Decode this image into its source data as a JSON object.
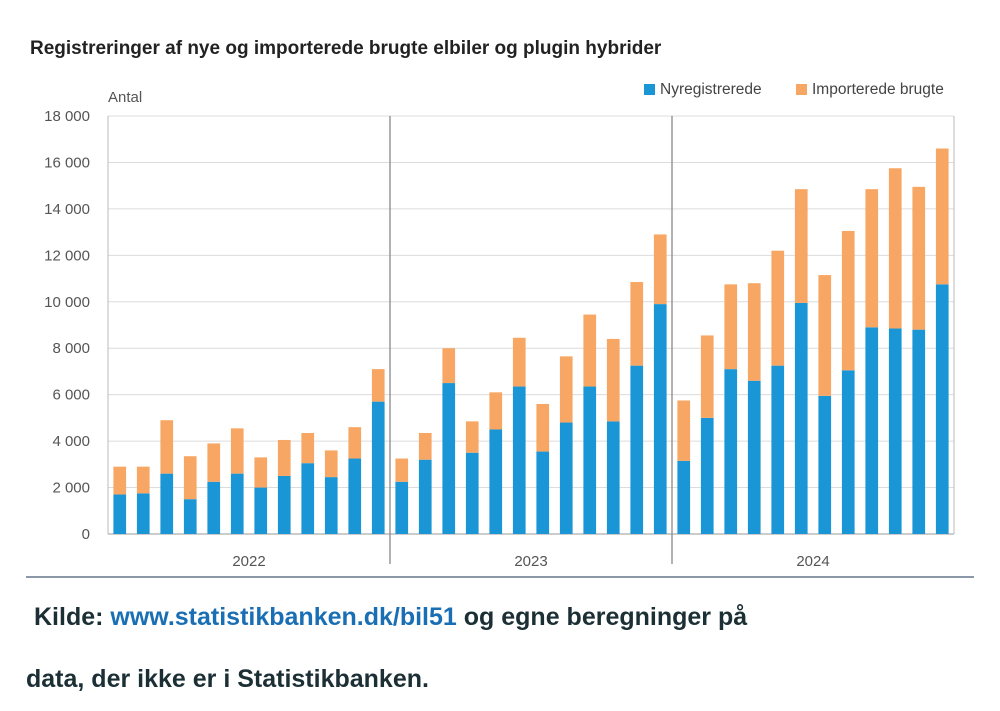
{
  "chart_data": {
    "type": "bar",
    "stacked": true,
    "title": "Registreringer af nye og importerede brugte elbiler og plugin hybrider",
    "ylabel": "Antal",
    "xlabel": "",
    "ylim": [
      0,
      18000
    ],
    "y_ticks": [
      0,
      2000,
      4000,
      6000,
      8000,
      10000,
      12000,
      14000,
      16000,
      18000
    ],
    "y_tick_labels": [
      "0",
      "2 000",
      "4 000",
      "6 000",
      "8 000",
      "10 000",
      "12 000",
      "14 000",
      "16 000",
      "18 000"
    ],
    "grid": true,
    "legend_position": "top-right",
    "groups": [
      {
        "label": "2022",
        "months": 12
      },
      {
        "label": "2023",
        "months": 12
      },
      {
        "label": "2024",
        "months": 12
      }
    ],
    "series": [
      {
        "name": "Nyregistrerede",
        "color": "#1a96d6",
        "values": [
          1700,
          1750,
          2600,
          1500,
          2250,
          2600,
          2000,
          2500,
          3050,
          2450,
          3250,
          5700,
          2250,
          3200,
          6500,
          3500,
          4500,
          6350,
          3550,
          4800,
          6350,
          4850,
          7250,
          9900,
          3150,
          5000,
          7100,
          6600,
          7250,
          9950,
          5950,
          7050,
          8900,
          8850,
          8800,
          10750
        ]
      },
      {
        "name": "Importerede brugte",
        "color": "#f7a763",
        "values": [
          1200,
          1150,
          2300,
          1850,
          1650,
          1950,
          1300,
          1550,
          1300,
          1150,
          1350,
          1400,
          1000,
          1150,
          1500,
          1350,
          1600,
          2100,
          2050,
          2850,
          3100,
          3550,
          3600,
          3000,
          2600,
          3550,
          3650,
          4200,
          4950,
          4900,
          5200,
          6000,
          5950,
          6900,
          6150,
          5850
        ]
      }
    ]
  },
  "source": {
    "prefix": "Kilde: ",
    "link": "www.statistikbanken.dk/bil51",
    "suffix": " og egne beregninger på",
    "line2": "data, der ikke er i Statistikbanken."
  }
}
